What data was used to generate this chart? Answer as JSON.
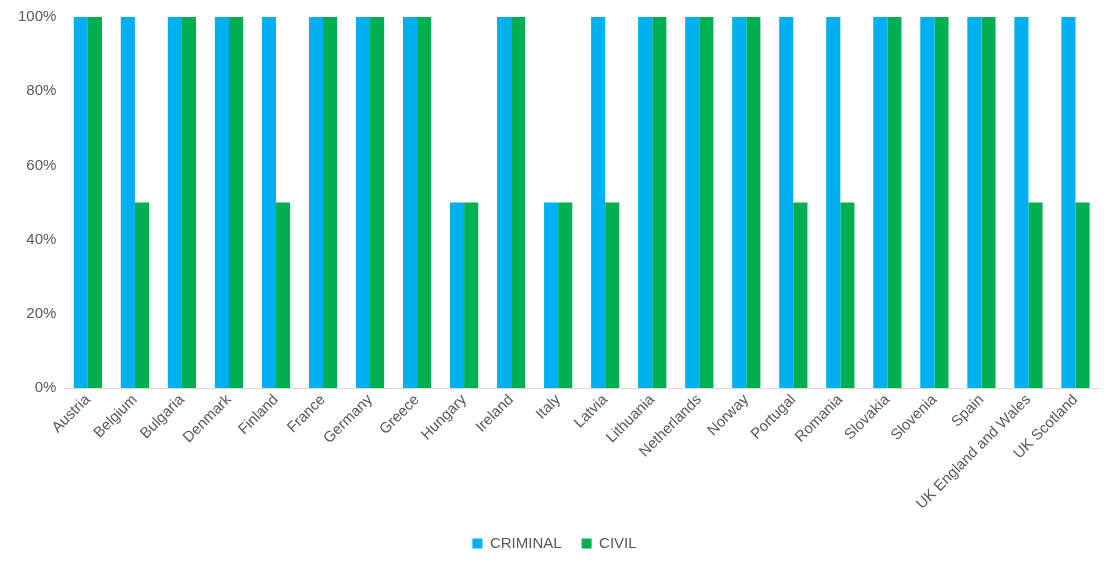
{
  "chart_data": {
    "type": "bar",
    "categories": [
      "Austria",
      "Belgium",
      "Bulgaria",
      "Denmark",
      "Finland",
      "France",
      "Germany",
      "Greece",
      "Hungary",
      "Ireland",
      "Italy",
      "Latvia",
      "Lithuania",
      "Netherlands",
      "Norway",
      "Portugal",
      "Romania",
      "Slovakia",
      "Slovenia",
      "Spain",
      "UK England and Wales",
      "UK Scotland"
    ],
    "series": [
      {
        "name": "CRIMINAL",
        "color": "#00b0f0",
        "values": [
          100,
          100,
          100,
          100,
          100,
          100,
          100,
          100,
          50,
          100,
          50,
          100,
          100,
          100,
          100,
          100,
          100,
          100,
          100,
          100,
          100,
          100
        ]
      },
      {
        "name": "CIVIL",
        "color": "#00b050",
        "values": [
          100,
          50,
          100,
          100,
          50,
          100,
          100,
          100,
          50,
          100,
          50,
          50,
          100,
          100,
          100,
          50,
          50,
          100,
          100,
          100,
          50,
          50
        ]
      }
    ],
    "ylim": [
      0,
      100
    ],
    "yticks": [
      {
        "value": 0,
        "label": "0%"
      },
      {
        "value": 20,
        "label": "20%"
      },
      {
        "value": 40,
        "label": "40%"
      },
      {
        "value": 60,
        "label": "60%"
      },
      {
        "value": 80,
        "label": "80%"
      },
      {
        "value": 100,
        "label": "100%"
      }
    ],
    "grid": false,
    "legend": "bottom"
  }
}
